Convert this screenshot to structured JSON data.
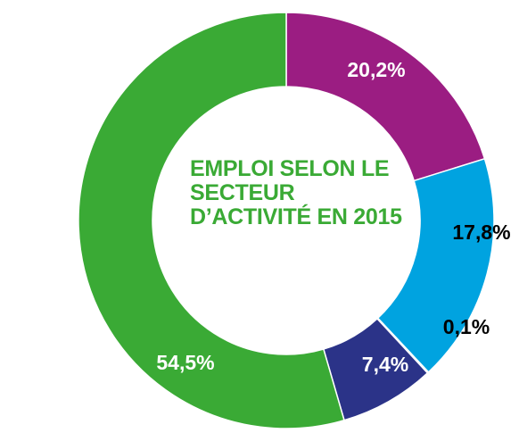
{
  "chart_data": {
    "type": "donut",
    "title": "EMPLOI SELON LE SECTEUR D’ACTIVITÉ EN 2015",
    "categories": [
      null,
      null,
      null,
      null,
      null
    ],
    "values": [
      20.2,
      17.8,
      0.1,
      7.4,
      54.5
    ],
    "value_labels": [
      "20,2%",
      "17,8%",
      "0,1%",
      "7,4%",
      "54,5%"
    ],
    "colors": [
      "#9b1d82",
      "#00a3e0",
      "#5e9e8c",
      "#2b3388",
      "#3aaa35"
    ],
    "label_colors": [
      "#ffffff",
      "#000000",
      "#000000",
      "#ffffff",
      "#ffffff"
    ]
  }
}
